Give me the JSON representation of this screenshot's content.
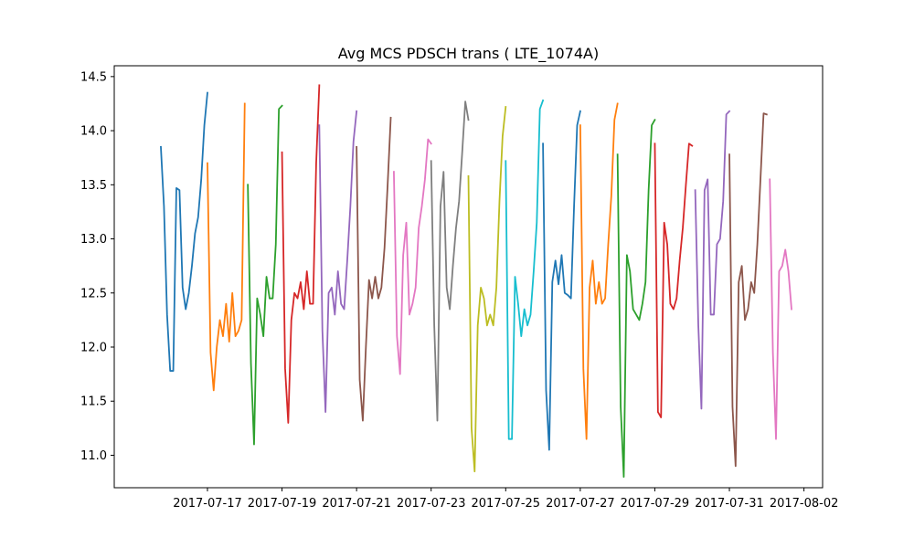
{
  "chart_data": {
    "type": "line",
    "title": "Avg MCS PDSCH trans ( LTE_1074A)",
    "xlabel": "",
    "ylabel": "",
    "xlim": [
      "2017-07-14T12:00",
      "2017-08-02T12:00"
    ],
    "ylim": [
      10.7,
      14.6
    ],
    "yticks": [
      "11.0",
      "11.5",
      "12.0",
      "12.5",
      "13.0",
      "13.5",
      "14.0",
      "14.5"
    ],
    "xticks": [
      "2017-07-17",
      "2017-07-19",
      "2017-07-21",
      "2017-07-23",
      "2017-07-25",
      "2017-07-27",
      "2017-07-29",
      "2017-07-31",
      "2017-08-02"
    ],
    "grid": false,
    "legend": "none",
    "series": [
      {
        "color": "#1f77b4",
        "x": [
          "2017-07-15T18:00",
          "2017-07-15T20:00",
          "2017-07-15T22:00",
          "2017-07-16T00:00",
          "2017-07-16T02:00",
          "2017-07-16T04:00",
          "2017-07-16T06:00",
          "2017-07-16T08:00",
          "2017-07-16T10:00",
          "2017-07-16T12:00",
          "2017-07-16T14:00",
          "2017-07-16T16:00",
          "2017-07-16T18:00",
          "2017-07-16T20:00",
          "2017-07-16T22:00",
          "2017-07-17T00:00"
        ],
        "y": [
          13.85,
          13.3,
          12.3,
          11.78,
          11.78,
          13.47,
          13.45,
          12.55,
          12.35,
          12.5,
          12.75,
          13.05,
          13.2,
          13.55,
          14.05,
          14.35
        ]
      },
      {
        "color": "#ff7f0e",
        "x": [
          "2017-07-17T00:00",
          "2017-07-17T02:00",
          "2017-07-17T04:00",
          "2017-07-17T06:00",
          "2017-07-17T08:00",
          "2017-07-17T10:00",
          "2017-07-17T12:00",
          "2017-07-17T14:00",
          "2017-07-17T16:00",
          "2017-07-17T18:00",
          "2017-07-17T20:00",
          "2017-07-17T22:00",
          "2017-07-18T00:00"
        ],
        "y": [
          13.7,
          11.95,
          11.6,
          12.0,
          12.25,
          12.1,
          12.4,
          12.05,
          12.5,
          12.1,
          12.15,
          12.25,
          14.25
        ]
      },
      {
        "color": "#2ca02c",
        "x": [
          "2017-07-18T02:00",
          "2017-07-18T04:00",
          "2017-07-18T06:00",
          "2017-07-18T08:00",
          "2017-07-18T10:00",
          "2017-07-18T12:00",
          "2017-07-18T14:00",
          "2017-07-18T16:00",
          "2017-07-18T18:00",
          "2017-07-18T20:00",
          "2017-07-18T22:00",
          "2017-07-19T00:00"
        ],
        "y": [
          13.5,
          11.85,
          11.1,
          12.45,
          12.3,
          12.1,
          12.65,
          12.45,
          12.45,
          12.95,
          14.2,
          14.23
        ]
      },
      {
        "color": "#d62728",
        "x": [
          "2017-07-19T00:00",
          "2017-07-19T02:00",
          "2017-07-19T04:00",
          "2017-07-19T06:00",
          "2017-07-19T08:00",
          "2017-07-19T10:00",
          "2017-07-19T12:00",
          "2017-07-19T14:00",
          "2017-07-19T16:00",
          "2017-07-19T18:00",
          "2017-07-19T20:00",
          "2017-07-19T22:00",
          "2017-07-20T00:00"
        ],
        "y": [
          13.8,
          11.8,
          11.3,
          12.25,
          12.5,
          12.45,
          12.6,
          12.35,
          12.7,
          12.4,
          12.4,
          13.7,
          14.42
        ]
      },
      {
        "color": "#9467bd",
        "x": [
          "2017-07-20T00:00",
          "2017-07-20T02:00",
          "2017-07-20T04:00",
          "2017-07-20T06:00",
          "2017-07-20T08:00",
          "2017-07-20T10:00",
          "2017-07-20T12:00",
          "2017-07-20T14:00",
          "2017-07-20T16:00",
          "2017-07-20T18:00",
          "2017-07-20T20:00",
          "2017-07-20T22:00",
          "2017-07-21T00:00"
        ],
        "y": [
          14.05,
          12.15,
          11.4,
          12.5,
          12.55,
          12.3,
          12.7,
          12.4,
          12.35,
          12.8,
          13.3,
          13.9,
          14.18
        ]
      },
      {
        "color": "#8c564b",
        "x": [
          "2017-07-21T00:00",
          "2017-07-21T02:00",
          "2017-07-21T04:00",
          "2017-07-21T06:00",
          "2017-07-21T08:00",
          "2017-07-21T10:00",
          "2017-07-21T12:00",
          "2017-07-21T14:00",
          "2017-07-21T16:00",
          "2017-07-21T18:00",
          "2017-07-21T20:00",
          "2017-07-21T22:00"
        ],
        "y": [
          13.85,
          11.7,
          11.32,
          12.0,
          12.62,
          12.45,
          12.65,
          12.45,
          12.55,
          12.92,
          13.5,
          14.12
        ]
      },
      {
        "color": "#e377c2",
        "x": [
          "2017-07-22T00:00",
          "2017-07-22T02:00",
          "2017-07-22T04:00",
          "2017-07-22T06:00",
          "2017-07-22T08:00",
          "2017-07-22T10:00",
          "2017-07-22T12:00",
          "2017-07-22T14:00",
          "2017-07-22T16:00",
          "2017-07-22T18:00",
          "2017-07-22T20:00",
          "2017-07-22T22:00",
          "2017-07-23T00:00"
        ],
        "y": [
          13.62,
          12.1,
          11.75,
          12.85,
          13.15,
          12.3,
          12.4,
          12.55,
          13.1,
          13.3,
          13.55,
          13.92,
          13.88
        ]
      },
      {
        "color": "#7f7f7f",
        "x": [
          "2017-07-23T00:00",
          "2017-07-23T02:00",
          "2017-07-23T04:00",
          "2017-07-23T06:00",
          "2017-07-23T08:00",
          "2017-07-23T10:00",
          "2017-07-23T12:00",
          "2017-07-23T14:00",
          "2017-07-23T16:00",
          "2017-07-23T18:00",
          "2017-07-23T20:00",
          "2017-07-23T22:00",
          "2017-07-24T00:00"
        ],
        "y": [
          13.72,
          12.2,
          11.32,
          13.3,
          13.62,
          12.55,
          12.35,
          12.75,
          13.1,
          13.35,
          13.8,
          14.27,
          14.1
        ]
      },
      {
        "color": "#bcbd22",
        "x": [
          "2017-07-24T00:00",
          "2017-07-24T02:00",
          "2017-07-24T04:00",
          "2017-07-24T06:00",
          "2017-07-24T08:00",
          "2017-07-24T10:00",
          "2017-07-24T12:00",
          "2017-07-24T14:00",
          "2017-07-24T16:00",
          "2017-07-24T18:00",
          "2017-07-24T20:00",
          "2017-07-24T22:00",
          "2017-07-25T00:00"
        ],
        "y": [
          13.58,
          11.25,
          10.85,
          12.2,
          12.55,
          12.45,
          12.2,
          12.3,
          12.2,
          12.55,
          13.35,
          13.95,
          14.22
        ]
      },
      {
        "color": "#17becf",
        "x": [
          "2017-07-25T00:00",
          "2017-07-25T02:00",
          "2017-07-25T04:00",
          "2017-07-25T06:00",
          "2017-07-25T08:00",
          "2017-07-25T10:00",
          "2017-07-25T12:00",
          "2017-07-25T14:00",
          "2017-07-25T16:00",
          "2017-07-25T18:00",
          "2017-07-25T20:00",
          "2017-07-25T22:00",
          "2017-07-26T00:00"
        ],
        "y": [
          13.72,
          11.15,
          11.15,
          12.65,
          12.4,
          12.1,
          12.35,
          12.2,
          12.3,
          12.7,
          13.15,
          14.2,
          14.28
        ]
      },
      {
        "color": "#1f77b4",
        "x": [
          "2017-07-26T00:00",
          "2017-07-26T02:00",
          "2017-07-26T04:00",
          "2017-07-26T06:00",
          "2017-07-26T08:00",
          "2017-07-26T10:00",
          "2017-07-26T12:00",
          "2017-07-26T14:00",
          "2017-07-26T16:00",
          "2017-07-26T18:00",
          "2017-07-26T20:00",
          "2017-07-26T22:00",
          "2017-07-27T00:00"
        ],
        "y": [
          13.88,
          11.6,
          11.05,
          12.6,
          12.8,
          12.58,
          12.85,
          12.5,
          12.48,
          12.45,
          13.3,
          14.05,
          14.18
        ]
      },
      {
        "color": "#ff7f0e",
        "x": [
          "2017-07-27T00:00",
          "2017-07-27T02:00",
          "2017-07-27T04:00",
          "2017-07-27T06:00",
          "2017-07-27T08:00",
          "2017-07-27T10:00",
          "2017-07-27T12:00",
          "2017-07-27T14:00",
          "2017-07-27T16:00",
          "2017-07-27T18:00",
          "2017-07-27T20:00",
          "2017-07-27T22:00",
          "2017-07-28T00:00"
        ],
        "y": [
          14.05,
          11.8,
          11.15,
          12.55,
          12.8,
          12.4,
          12.6,
          12.4,
          12.45,
          12.95,
          13.4,
          14.1,
          14.25
        ]
      },
      {
        "color": "#2ca02c",
        "x": [
          "2017-07-28T00:00",
          "2017-07-28T02:00",
          "2017-07-28T04:00",
          "2017-07-28T06:00",
          "2017-07-28T08:00",
          "2017-07-28T10:00",
          "2017-07-28T12:00",
          "2017-07-28T14:00",
          "2017-07-28T16:00",
          "2017-07-28T18:00",
          "2017-07-28T20:00",
          "2017-07-28T22:00",
          "2017-07-29T00:00"
        ],
        "y": [
          13.78,
          11.45,
          10.8,
          12.85,
          12.7,
          12.35,
          12.3,
          12.25,
          12.4,
          12.6,
          13.45,
          14.05,
          14.1
        ]
      },
      {
        "color": "#d62728",
        "x": [
          "2017-07-29T00:00",
          "2017-07-29T02:00",
          "2017-07-29T04:00",
          "2017-07-29T06:00",
          "2017-07-29T08:00",
          "2017-07-29T10:00",
          "2017-07-29T12:00",
          "2017-07-29T14:00",
          "2017-07-29T16:00",
          "2017-07-29T18:00",
          "2017-07-29T20:00",
          "2017-07-29T22:00",
          "2017-07-30T00:00"
        ],
        "y": [
          13.88,
          11.4,
          11.35,
          13.15,
          12.95,
          12.4,
          12.35,
          12.45,
          12.8,
          13.1,
          13.5,
          13.88,
          13.86
        ]
      },
      {
        "color": "#9467bd",
        "x": [
          "2017-07-30T02:00",
          "2017-07-30T04:00",
          "2017-07-30T06:00",
          "2017-07-30T08:00",
          "2017-07-30T10:00",
          "2017-07-30T12:00",
          "2017-07-30T14:00",
          "2017-07-30T16:00",
          "2017-07-30T18:00",
          "2017-07-30T20:00",
          "2017-07-30T22:00",
          "2017-07-31T00:00"
        ],
        "y": [
          13.45,
          12.2,
          11.43,
          13.45,
          13.55,
          12.3,
          12.3,
          12.95,
          13.0,
          13.35,
          14.15,
          14.18
        ]
      },
      {
        "color": "#8c564b",
        "x": [
          "2017-07-31T00:00",
          "2017-07-31T02:00",
          "2017-07-31T04:00",
          "2017-07-31T06:00",
          "2017-07-31T08:00",
          "2017-07-31T10:00",
          "2017-07-31T12:00",
          "2017-07-31T14:00",
          "2017-07-31T16:00",
          "2017-07-31T18:00",
          "2017-07-31T20:00",
          "2017-07-31T22:00",
          "2017-08-01T00:00"
        ],
        "y": [
          13.78,
          11.45,
          10.9,
          12.6,
          12.75,
          12.25,
          12.35,
          12.6,
          12.5,
          12.95,
          13.55,
          14.16,
          14.15
        ]
      },
      {
        "color": "#e377c2",
        "x": [
          "2017-08-01T02:00",
          "2017-08-01T04:00",
          "2017-08-01T06:00",
          "2017-08-01T08:00",
          "2017-08-01T10:00",
          "2017-08-01T12:00",
          "2017-08-01T14:00",
          "2017-08-01T16:00"
        ],
        "y": [
          13.55,
          11.95,
          11.15,
          12.7,
          12.75,
          12.9,
          12.7,
          12.35
        ]
      }
    ]
  }
}
